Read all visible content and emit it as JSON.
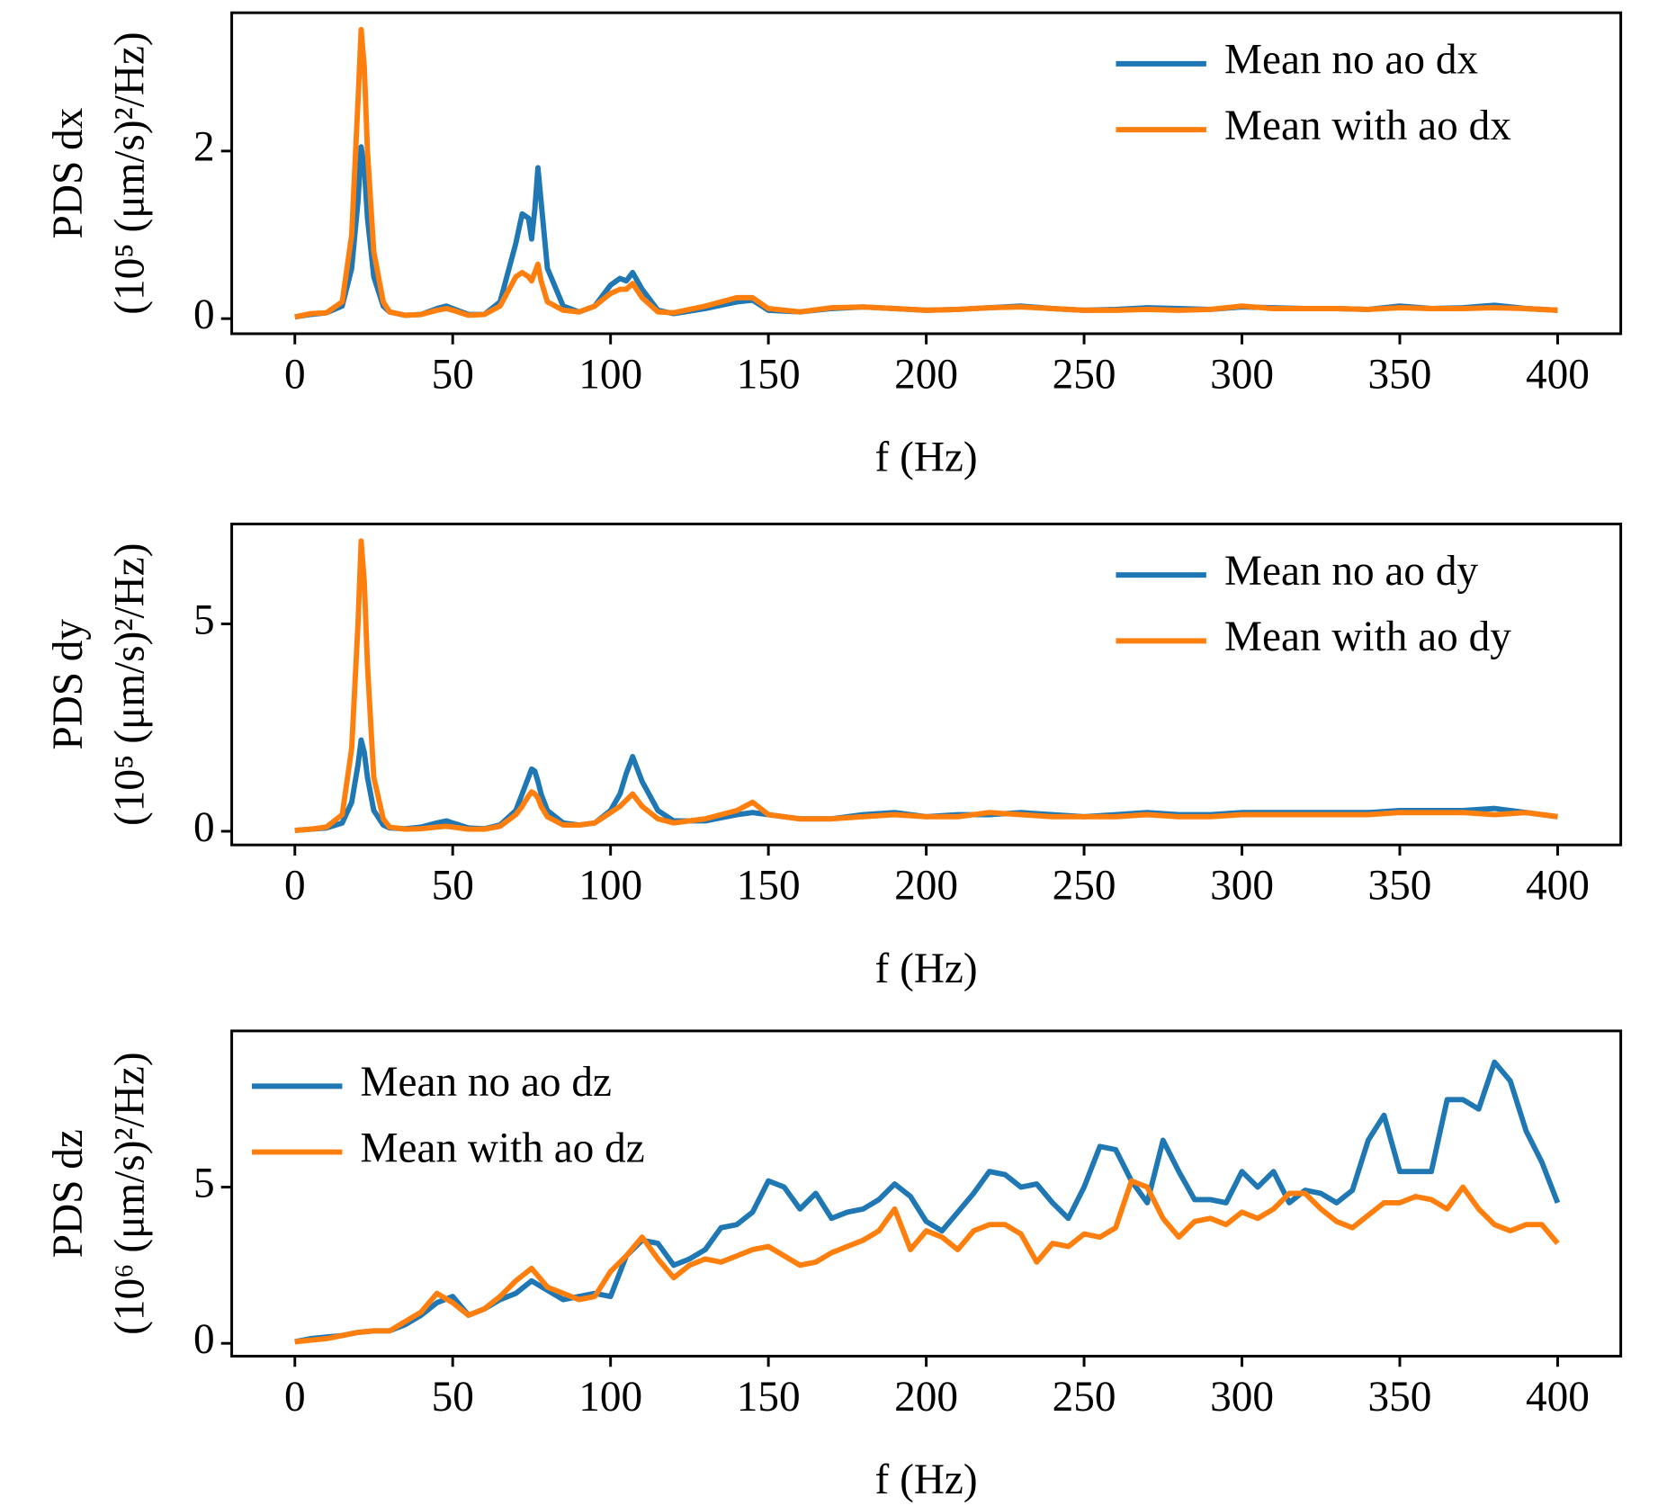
{
  "chart_data": [
    {
      "type": "line",
      "ylabel": [
        "PDS dx",
        "(10⁵ (μm/s)²/Hz)"
      ],
      "xlabel": "f (Hz)",
      "xlim": [
        -20,
        420
      ],
      "ylim": [
        -0.18,
        3.65
      ],
      "xticks": [
        0,
        50,
        100,
        150,
        200,
        250,
        300,
        350,
        400
      ],
      "yticks": [
        0,
        2
      ],
      "legend": "upper right",
      "x": [
        0,
        5,
        10,
        15,
        18,
        20,
        21,
        22,
        23,
        25,
        28,
        30,
        35,
        40,
        45,
        48,
        50,
        55,
        60,
        65,
        70,
        72,
        74,
        75,
        76,
        77,
        78,
        80,
        85,
        90,
        95,
        100,
        103,
        105,
        107,
        110,
        115,
        120,
        130,
        140,
        145,
        150,
        160,
        170,
        180,
        190,
        200,
        210,
        220,
        230,
        240,
        250,
        260,
        270,
        280,
        290,
        300,
        310,
        320,
        330,
        340,
        350,
        360,
        370,
        380,
        390,
        400
      ],
      "series": [
        {
          "name": "Mean no ao dx",
          "color": "#1f77b4",
          "values": [
            0.02,
            0.05,
            0.07,
            0.15,
            0.6,
            1.4,
            2.05,
            1.8,
            1.2,
            0.5,
            0.15,
            0.08,
            0.04,
            0.05,
            0.12,
            0.15,
            0.12,
            0.05,
            0.05,
            0.2,
            0.9,
            1.25,
            1.2,
            0.95,
            1.3,
            1.8,
            1.4,
            0.6,
            0.15,
            0.08,
            0.15,
            0.4,
            0.48,
            0.45,
            0.55,
            0.35,
            0.1,
            0.06,
            0.12,
            0.2,
            0.22,
            0.1,
            0.08,
            0.12,
            0.14,
            0.12,
            0.1,
            0.11,
            0.13,
            0.15,
            0.12,
            0.1,
            0.11,
            0.13,
            0.12,
            0.11,
            0.14,
            0.13,
            0.12,
            0.12,
            0.11,
            0.15,
            0.12,
            0.13,
            0.16,
            0.12,
            0.1
          ]
        },
        {
          "name": "Mean with ao dx",
          "color": "#ff7f0e",
          "values": [
            0.02,
            0.06,
            0.07,
            0.2,
            1.0,
            2.6,
            3.45,
            3.0,
            2.0,
            0.8,
            0.2,
            0.08,
            0.04,
            0.05,
            0.1,
            0.12,
            0.1,
            0.04,
            0.05,
            0.15,
            0.5,
            0.55,
            0.5,
            0.45,
            0.55,
            0.65,
            0.45,
            0.2,
            0.1,
            0.08,
            0.15,
            0.3,
            0.35,
            0.35,
            0.42,
            0.25,
            0.08,
            0.07,
            0.15,
            0.25,
            0.25,
            0.12,
            0.08,
            0.13,
            0.14,
            0.12,
            0.1,
            0.11,
            0.13,
            0.14,
            0.12,
            0.1,
            0.1,
            0.11,
            0.1,
            0.11,
            0.15,
            0.12,
            0.12,
            0.12,
            0.11,
            0.13,
            0.12,
            0.12,
            0.13,
            0.12,
            0.1
          ]
        }
      ]
    },
    {
      "type": "line",
      "ylabel": [
        "PDS dy",
        "(10⁵ (μm/s)²/Hz)"
      ],
      "xlabel": "f (Hz)",
      "xlim": [
        -20,
        420
      ],
      "ylim": [
        -0.33,
        7.41
      ],
      "xticks": [
        0,
        50,
        100,
        150,
        200,
        250,
        300,
        350,
        400
      ],
      "yticks": [
        0,
        5
      ],
      "legend": "upper right",
      "x": [
        0,
        5,
        10,
        15,
        18,
        20,
        21,
        22,
        23,
        25,
        28,
        30,
        35,
        40,
        45,
        48,
        50,
        55,
        60,
        65,
        70,
        72,
        74,
        75,
        76,
        77,
        78,
        80,
        85,
        90,
        95,
        100,
        103,
        105,
        107,
        110,
        115,
        120,
        130,
        140,
        145,
        150,
        160,
        170,
        180,
        190,
        200,
        210,
        220,
        230,
        240,
        250,
        260,
        270,
        280,
        290,
        300,
        310,
        320,
        330,
        340,
        350,
        360,
        370,
        380,
        390,
        400
      ],
      "series": [
        {
          "name": "Mean no ao dy",
          "color": "#1f77b4",
          "values": [
            0.02,
            0.05,
            0.08,
            0.2,
            0.7,
            1.6,
            2.2,
            1.9,
            1.3,
            0.5,
            0.15,
            0.08,
            0.06,
            0.1,
            0.2,
            0.25,
            0.2,
            0.08,
            0.06,
            0.15,
            0.5,
            0.9,
            1.3,
            1.5,
            1.45,
            1.2,
            0.9,
            0.5,
            0.2,
            0.15,
            0.2,
            0.5,
            0.9,
            1.4,
            1.8,
            1.2,
            0.5,
            0.25,
            0.25,
            0.4,
            0.45,
            0.4,
            0.3,
            0.3,
            0.4,
            0.45,
            0.35,
            0.4,
            0.4,
            0.45,
            0.4,
            0.35,
            0.4,
            0.45,
            0.4,
            0.4,
            0.45,
            0.45,
            0.45,
            0.45,
            0.45,
            0.5,
            0.5,
            0.5,
            0.55,
            0.45,
            0.35
          ]
        },
        {
          "name": "Mean with ao dy",
          "color": "#ff7f0e",
          "values": [
            0.02,
            0.05,
            0.1,
            0.4,
            2.0,
            5.0,
            7.0,
            6.0,
            4.0,
            1.3,
            0.3,
            0.1,
            0.05,
            0.06,
            0.1,
            0.12,
            0.1,
            0.05,
            0.05,
            0.12,
            0.4,
            0.6,
            0.85,
            0.95,
            0.9,
            0.8,
            0.6,
            0.35,
            0.15,
            0.15,
            0.2,
            0.45,
            0.6,
            0.75,
            0.9,
            0.6,
            0.3,
            0.2,
            0.3,
            0.5,
            0.7,
            0.4,
            0.3,
            0.3,
            0.35,
            0.4,
            0.35,
            0.35,
            0.45,
            0.4,
            0.35,
            0.35,
            0.35,
            0.4,
            0.35,
            0.35,
            0.4,
            0.4,
            0.4,
            0.4,
            0.4,
            0.45,
            0.45,
            0.45,
            0.4,
            0.45,
            0.35
          ]
        }
      ]
    },
    {
      "type": "line",
      "ylabel": [
        "PDS dz",
        "(10⁶ (μm/s)²/Hz)"
      ],
      "xlabel": "f (Hz)",
      "xlim": [
        -20,
        420
      ],
      "ylim": [
        -0.41,
        10.0
      ],
      "xticks": [
        0,
        50,
        100,
        150,
        200,
        250,
        300,
        350,
        400
      ],
      "yticks": [
        0,
        5
      ],
      "legend": "upper left",
      "x": [
        0,
        5,
        10,
        15,
        20,
        25,
        30,
        35,
        40,
        45,
        50,
        55,
        60,
        65,
        70,
        75,
        80,
        85,
        90,
        95,
        100,
        105,
        110,
        115,
        120,
        125,
        130,
        135,
        140,
        145,
        150,
        155,
        160,
        165,
        170,
        175,
        180,
        185,
        190,
        195,
        200,
        205,
        210,
        215,
        220,
        225,
        230,
        235,
        240,
        245,
        250,
        255,
        260,
        265,
        270,
        275,
        280,
        285,
        290,
        295,
        300,
        305,
        310,
        315,
        320,
        325,
        330,
        335,
        340,
        345,
        350,
        355,
        360,
        365,
        370,
        375,
        380,
        385,
        390,
        395,
        400
      ],
      "series": [
        {
          "name": "Mean no ao dz",
          "color": "#1f77b4",
          "values": [
            0.05,
            0.15,
            0.2,
            0.25,
            0.35,
            0.4,
            0.4,
            0.6,
            0.9,
            1.3,
            1.5,
            0.9,
            1.1,
            1.4,
            1.6,
            2.0,
            1.7,
            1.4,
            1.5,
            1.6,
            1.5,
            2.8,
            3.3,
            3.2,
            2.5,
            2.7,
            3.0,
            3.7,
            3.8,
            4.2,
            5.2,
            5.0,
            4.3,
            4.8,
            4.0,
            4.2,
            4.3,
            4.6,
            5.1,
            4.7,
            3.9,
            3.6,
            4.2,
            4.8,
            5.5,
            5.4,
            5.0,
            5.1,
            4.5,
            4.0,
            5.0,
            6.3,
            6.2,
            5.2,
            4.5,
            6.5,
            5.5,
            4.6,
            4.6,
            4.5,
            5.5,
            5.0,
            5.5,
            4.5,
            4.9,
            4.8,
            4.5,
            4.9,
            6.5,
            7.3,
            5.5,
            5.5,
            5.5,
            7.8,
            7.8,
            7.5,
            9.0,
            8.4,
            6.8,
            5.8,
            4.5
          ]
        },
        {
          "name": "Mean with ao dz",
          "color": "#ff7f0e",
          "values": [
            0.05,
            0.1,
            0.15,
            0.25,
            0.35,
            0.4,
            0.4,
            0.7,
            1.0,
            1.6,
            1.3,
            0.9,
            1.1,
            1.5,
            2.0,
            2.4,
            1.8,
            1.6,
            1.4,
            1.5,
            2.3,
            2.8,
            3.4,
            2.7,
            2.1,
            2.5,
            2.7,
            2.6,
            2.8,
            3.0,
            3.1,
            2.8,
            2.5,
            2.6,
            2.9,
            3.1,
            3.3,
            3.6,
            4.3,
            3.0,
            3.6,
            3.4,
            3.0,
            3.6,
            3.8,
            3.8,
            3.5,
            2.6,
            3.2,
            3.1,
            3.5,
            3.4,
            3.7,
            5.2,
            5.0,
            4.0,
            3.4,
            3.9,
            4.0,
            3.8,
            4.2,
            4.0,
            4.3,
            4.8,
            4.8,
            4.3,
            3.9,
            3.7,
            4.1,
            4.5,
            4.5,
            4.7,
            4.6,
            4.3,
            5.0,
            4.3,
            3.8,
            3.6,
            3.8,
            3.8,
            3.2
          ]
        }
      ]
    }
  ]
}
